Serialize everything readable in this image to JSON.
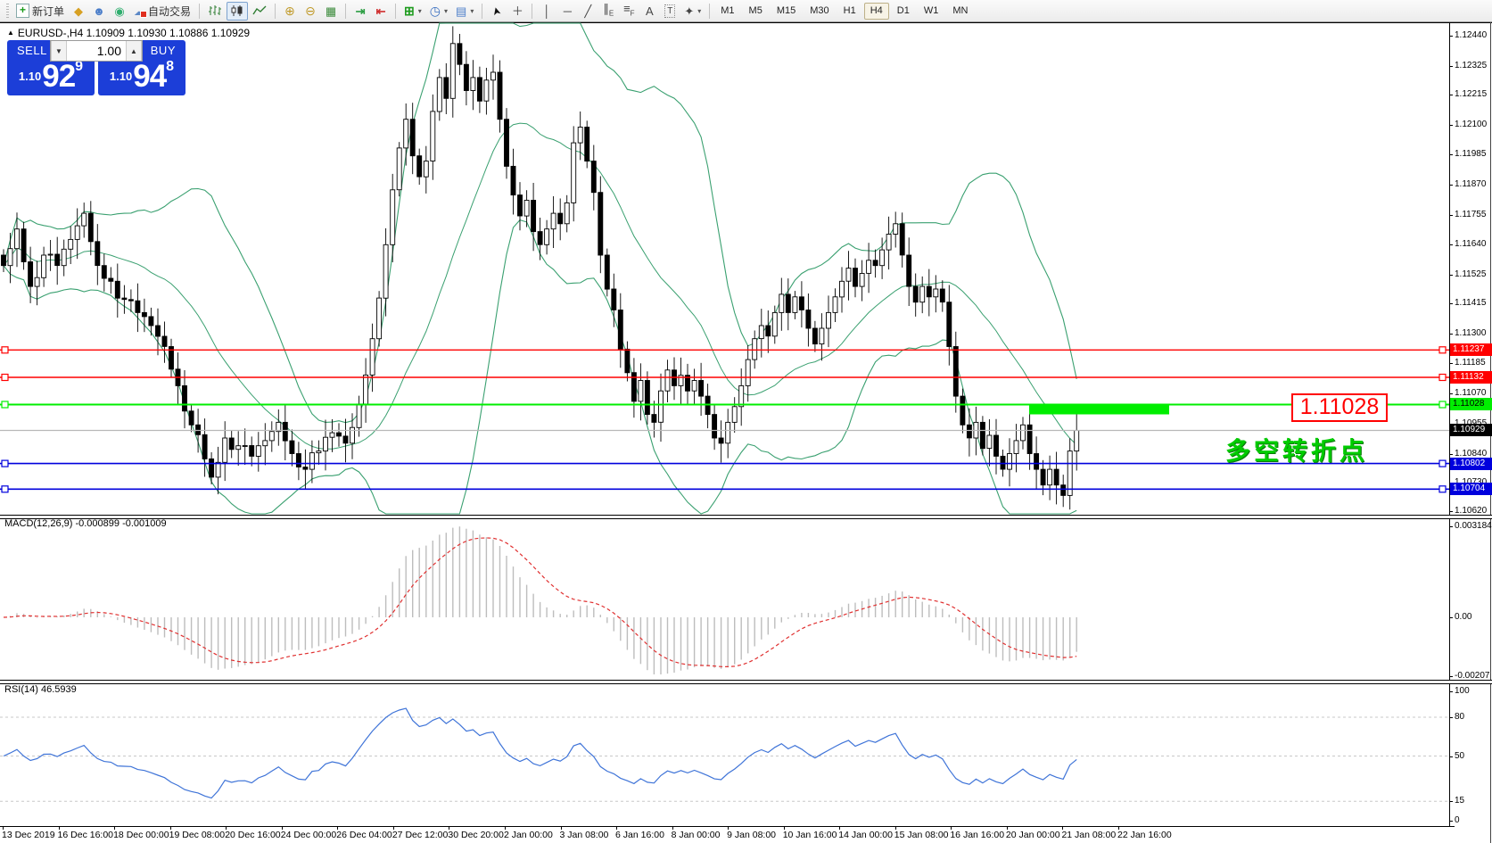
{
  "toolbar": {
    "new_order_label": "新订单",
    "autotrading_label": "自动交易",
    "timeframes": [
      "M1",
      "M5",
      "M15",
      "M30",
      "H1",
      "H4",
      "D1",
      "W1",
      "MN"
    ],
    "selected_timeframe": "H4"
  },
  "trade_panel": {
    "symbol_title": "EURUSD-,H4 1.10909 1.10930 1.10886 1.10929",
    "sell_label": "SELL",
    "buy_label": "BUY",
    "volume": "1.00",
    "sell_price": {
      "prefix": "1.10",
      "big": "92",
      "sup": "9"
    },
    "buy_price": {
      "prefix": "1.10",
      "big": "94",
      "sup": "8"
    }
  },
  "price_axis": {
    "ticks": [
      "1.12440",
      "1.12325",
      "1.12215",
      "1.12100",
      "1.11985",
      "1.11870",
      "1.11755",
      "1.11640",
      "1.11525",
      "1.11415",
      "1.11300",
      "1.11185",
      "1.11070",
      "1.10955",
      "1.10840",
      "1.10730",
      "1.10620"
    ],
    "markers": [
      {
        "text": "1.11237",
        "bg": "#ff0000",
        "fg": "#ffffff",
        "price": 1.11237
      },
      {
        "text": "1.11132",
        "bg": "#ff0000",
        "fg": "#ffffff",
        "price": 1.11132
      },
      {
        "text": "1.11028",
        "bg": "#00ee00",
        "fg": "#000000",
        "price": 1.11028
      },
      {
        "text": "1.10929",
        "bg": "#000000",
        "fg": "#ffffff",
        "price": 1.10929
      },
      {
        "text": "1.10802",
        "bg": "#0000dd",
        "fg": "#ffffff",
        "price": 1.10802
      },
      {
        "text": "1.10704",
        "bg": "#0000dd",
        "fg": "#ffffff",
        "price": 1.10704
      }
    ]
  },
  "annotations": {
    "price_box_text": "1.11028",
    "cn_label": "多空转折点"
  },
  "macd_panel": {
    "label": "MACD(12,26,9) -0.000899 -0.001009",
    "axis": [
      "0.003184",
      "0.00",
      "-0.00207"
    ]
  },
  "rsi_panel": {
    "label": "RSI(14) 46.5939",
    "axis": [
      "100",
      "80",
      "50",
      "15",
      "0"
    ],
    "levels": [
      80,
      50,
      15
    ]
  },
  "time_axis": [
    "13 Dec 2019",
    "16 Dec 16:00",
    "18 Dec 00:00",
    "19 Dec 08:00",
    "20 Dec 16:00",
    "24 Dec 00:00",
    "26 Dec 04:00",
    "27 Dec 12:00",
    "30 Dec 20:00",
    "2 Jan 00:00",
    "3 Jan 08:00",
    "6 Jan 16:00",
    "8 Jan 00:00",
    "9 Jan 08:00",
    "10 Jan 16:00",
    "14 Jan 00:00",
    "15 Jan 08:00",
    "16 Jan 16:00",
    "20 Jan 00:00",
    "21 Jan 08:00",
    "22 Jan 16:00"
  ],
  "chart_data": {
    "type": "candlestick",
    "symbol": "EURUSD-",
    "timeframe": "H4",
    "current_ohlc": {
      "open": 1.10909,
      "high": 1.1093,
      "low": 1.10886,
      "close": 1.10929
    },
    "bid": 1.10929,
    "ask": 1.10948,
    "y_range": [
      1.1062,
      1.1244
    ],
    "indicators": [
      "Bollinger Bands (green)",
      "MACD(12,26,9)",
      "RSI(14)"
    ],
    "horizontal_lines": [
      {
        "price": 1.11237,
        "color": "#ff0000",
        "width": 1.4
      },
      {
        "price": 1.11132,
        "color": "#ff0000",
        "width": 1.4
      },
      {
        "price": 1.11028,
        "color": "#00ee00",
        "width": 2
      },
      {
        "price": 1.10802,
        "color": "#0000dd",
        "width": 1.6
      },
      {
        "price": 1.10704,
        "color": "#0000dd",
        "width": 1.6
      }
    ],
    "current_price_line": {
      "price": 1.10929,
      "color": "#b8b8b8"
    },
    "highlight_bar": {
      "x": 1154,
      "y": 452.5,
      "w": 157,
      "h": 12,
      "color": "#00ee00"
    },
    "candle_count": 161,
    "price_anchors": [
      [
        0,
        1.1156
      ],
      [
        2,
        1.117
      ],
      [
        4,
        1.1148
      ],
      [
        6,
        1.116
      ],
      [
        8,
        1.1156
      ],
      [
        10,
        1.1166
      ],
      [
        12,
        1.1176
      ],
      [
        14,
        1.1156
      ],
      [
        16,
        1.115
      ],
      [
        18,
        1.1143
      ],
      [
        20,
        1.1138
      ],
      [
        22,
        1.1133
      ],
      [
        24,
        1.1125
      ],
      [
        26,
        1.111
      ],
      [
        28,
        1.1095
      ],
      [
        30,
        1.1082
      ],
      [
        31,
        1.1075
      ],
      [
        33,
        1.109
      ],
      [
        35,
        1.1087
      ],
      [
        37,
        1.1083
      ],
      [
        39,
        1.1089
      ],
      [
        41,
        1.1096
      ],
      [
        43,
        1.1084
      ],
      [
        45,
        1.1078
      ],
      [
        47,
        1.1085
      ],
      [
        49,
        1.1092
      ],
      [
        51,
        1.1088
      ],
      [
        52,
        1.1094
      ],
      [
        53,
        1.1103
      ],
      [
        55,
        1.1128
      ],
      [
        57,
        1.1164
      ],
      [
        59,
        1.1201
      ],
      [
        60,
        1.1212
      ],
      [
        61,
        1.1198
      ],
      [
        62,
        1.119
      ],
      [
        63,
        1.1196
      ],
      [
        64,
        1.1215
      ],
      [
        65,
        1.1228
      ],
      [
        66,
        1.122
      ],
      [
        67,
        1.1241
      ],
      [
        68,
        1.1233
      ],
      [
        69,
        1.1223
      ],
      [
        70,
        1.1228
      ],
      [
        71,
        1.1219
      ],
      [
        72,
        1.1227
      ],
      [
        73,
        1.123
      ],
      [
        74,
        1.1212
      ],
      [
        75,
        1.1194
      ],
      [
        76,
        1.1183
      ],
      [
        77,
        1.1175
      ],
      [
        78,
        1.1181
      ],
      [
        79,
        1.1169
      ],
      [
        80,
        1.1164
      ],
      [
        81,
        1.117
      ],
      [
        82,
        1.1176
      ],
      [
        83,
        1.1172
      ],
      [
        84,
        1.118
      ],
      [
        85,
        1.1203
      ],
      [
        86,
        1.1209
      ],
      [
        87,
        1.1196
      ],
      [
        88,
        1.1184
      ],
      [
        89,
        1.116
      ],
      [
        90,
        1.1147
      ],
      [
        91,
        1.1139
      ],
      [
        92,
        1.1124
      ],
      [
        93,
        1.1115
      ],
      [
        94,
        1.1104
      ],
      [
        95,
        1.1112
      ],
      [
        96,
        1.1099
      ],
      [
        97,
        1.1096
      ],
      [
        98,
        1.1108
      ],
      [
        99,
        1.1116
      ],
      [
        100,
        1.111
      ],
      [
        101,
        1.1114
      ],
      [
        102,
        1.1108
      ],
      [
        103,
        1.1112
      ],
      [
        104,
        1.1106
      ],
      [
        105,
        1.1099
      ],
      [
        106,
        1.109
      ],
      [
        107,
        1.1088
      ],
      [
        108,
        1.1096
      ],
      [
        109,
        1.1102
      ],
      [
        110,
        1.111
      ],
      [
        111,
        1.112
      ],
      [
        112,
        1.1128
      ],
      [
        113,
        1.1133
      ],
      [
        114,
        1.1129
      ],
      [
        115,
        1.1138
      ],
      [
        116,
        1.1145
      ],
      [
        117,
        1.1138
      ],
      [
        118,
        1.1144
      ],
      [
        119,
        1.1139
      ],
      [
        120,
        1.1132
      ],
      [
        121,
        1.1126
      ],
      [
        122,
        1.1132
      ],
      [
        123,
        1.1138
      ],
      [
        124,
        1.1144
      ],
      [
        125,
        1.115
      ],
      [
        126,
        1.1155
      ],
      [
        127,
        1.1148
      ],
      [
        128,
        1.1153
      ],
      [
        129,
        1.1158
      ],
      [
        130,
        1.1156
      ],
      [
        131,
        1.1162
      ],
      [
        132,
        1.1168
      ],
      [
        133,
        1.1172
      ],
      [
        134,
        1.116
      ],
      [
        135,
        1.1148
      ],
      [
        136,
        1.1142
      ],
      [
        137,
        1.1148
      ],
      [
        138,
        1.1144
      ],
      [
        139,
        1.1147
      ],
      [
        140,
        1.1142
      ],
      [
        141,
        1.1125
      ],
      [
        142,
        1.1106
      ],
      [
        143,
        1.1095
      ],
      [
        144,
        1.109
      ],
      [
        145,
        1.1096
      ],
      [
        146,
        1.1086
      ],
      [
        147,
        1.1091
      ],
      [
        148,
        1.1083
      ],
      [
        149,
        1.1078
      ],
      [
        150,
        1.1084
      ],
      [
        151,
        1.1089
      ],
      [
        152,
        1.1095
      ],
      [
        153,
        1.1084
      ],
      [
        154,
        1.1078
      ],
      [
        155,
        1.1072
      ],
      [
        156,
        1.1078
      ],
      [
        157,
        1.1072
      ],
      [
        158,
        1.1068
      ],
      [
        159,
        1.1085
      ],
      [
        160,
        1.10929
      ]
    ]
  }
}
